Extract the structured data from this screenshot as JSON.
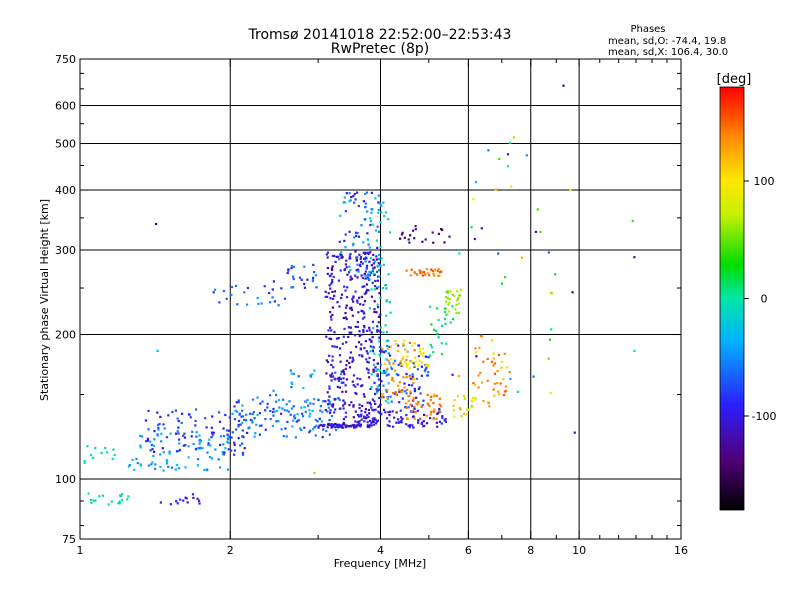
{
  "chart_data": {
    "type": "scatter",
    "title": "Tromsø 20141018 22:52:00–22:53:43",
    "subtitle": "RwPretec (8p)",
    "stats": {
      "heading": "Phases",
      "line1": "mean, sd,O: -74.4, 19.8",
      "line2": "mean, sd,X: 106.4, 30.0"
    },
    "xlabel": "Frequency [MHz]",
    "ylabel": "Stationary phase Virtual Height [km]",
    "x_scale": "log",
    "y_scale": "log",
    "xlim": [
      1,
      16
    ],
    "ylim": [
      75,
      750
    ],
    "x_ticks": [
      {
        "value": 1,
        "label": "1"
      },
      {
        "value": 2,
        "label": "2"
      },
      {
        "value": 4,
        "label": "4"
      },
      {
        "value": 6,
        "label": "6"
      },
      {
        "value": 8,
        "label": "8"
      },
      {
        "value": 10,
        "label": "10"
      },
      {
        "value": 16,
        "label": "16"
      }
    ],
    "y_ticks": [
      {
        "value": 75,
        "label": "75"
      },
      {
        "value": 100,
        "label": "100"
      },
      {
        "value": 200,
        "label": "200"
      },
      {
        "value": 300,
        "label": "300"
      },
      {
        "value": 400,
        "label": "400"
      },
      {
        "value": 500,
        "label": "500"
      },
      {
        "value": 600,
        "label": "600"
      },
      {
        "value": 750,
        "label": "750"
      }
    ],
    "x_gridlines": [
      2,
      4,
      6,
      8,
      10
    ],
    "y_gridlines": [
      100,
      200,
      300,
      400,
      500,
      600
    ],
    "grid": true,
    "colorbar": {
      "label": "[deg]",
      "range": [
        -180,
        180
      ],
      "ticks": [
        {
          "value": 100,
          "label": "100"
        },
        {
          "value": 0,
          "label": "0"
        },
        {
          "value": -100,
          "label": "-100"
        }
      ]
    },
    "clusters": [
      {
        "x": [
          1.0,
          1.25
        ],
        "y": [
          88,
          94
        ],
        "phase": [
          -20,
          10
        ],
        "n": 18
      },
      {
        "x": [
          1.45,
          1.75
        ],
        "y": [
          88,
          93
        ],
        "phase": [
          -110,
          -80
        ],
        "n": 14
      },
      {
        "x": [
          1.02,
          1.2
        ],
        "y": [
          105,
          118
        ],
        "phase": [
          -20,
          10
        ],
        "n": 12
      },
      {
        "x": [
          1.25,
          2.0
        ],
        "y": [
          104,
          128
        ],
        "phase": [
          -60,
          -20
        ],
        "n": 90
      },
      {
        "x": [
          1.35,
          2.2
        ],
        "y": [
          112,
          140
        ],
        "phase": [
          -110,
          -60
        ],
        "n": 90
      },
      {
        "x": [
          2.0,
          3.3
        ],
        "y": [
          122,
          148
        ],
        "phase": [
          -90,
          -30
        ],
        "n": 120
      },
      {
        "x": [
          2.4,
          3.4
        ],
        "y": [
          130,
          170
        ],
        "phase": [
          -70,
          -20
        ],
        "n": 40
      },
      {
        "x": [
          1.85,
          2.6
        ],
        "y": [
          230,
          260
        ],
        "phase": [
          -100,
          -40
        ],
        "n": 25
      },
      {
        "x": [
          2.6,
          3.0
        ],
        "y": [
          250,
          280
        ],
        "phase": [
          -100,
          -40
        ],
        "n": 25
      },
      {
        "x": [
          3.0,
          3.8
        ],
        "y": [
          128,
          130
        ],
        "phase": [
          -120,
          -90
        ],
        "n": 60
      },
      {
        "x": [
          3.1,
          4.0
        ],
        "y": [
          130,
          300
        ],
        "phase": [
          -130,
          -80
        ],
        "n": 380
      },
      {
        "x": [
          3.3,
          4.0
        ],
        "y": [
          260,
          400
        ],
        "phase": [
          -110,
          -20
        ],
        "n": 80
      },
      {
        "x": [
          3.8,
          4.2
        ],
        "y": [
          140,
          380
        ],
        "phase": [
          -40,
          10
        ],
        "n": 80
      },
      {
        "x": [
          3.6,
          5.5
        ],
        "y": [
          128,
          140
        ],
        "phase": [
          -120,
          -80
        ],
        "n": 90
      },
      {
        "x": [
          3.9,
          5.0
        ],
        "y": [
          140,
          190
        ],
        "phase": [
          -110,
          -50
        ],
        "n": 90
      },
      {
        "x": [
          4.0,
          4.7
        ],
        "y": [
          145,
          195
        ],
        "phase": [
          110,
          150
        ],
        "n": 50
      },
      {
        "x": [
          4.4,
          5.0
        ],
        "y": [
          170,
          195
        ],
        "phase": [
          90,
          110
        ],
        "n": 30
      },
      {
        "x": [
          4.5,
          5.3
        ],
        "y": [
          133,
          150
        ],
        "phase": [
          130,
          150
        ],
        "n": 40
      },
      {
        "x": [
          4.5,
          5.3
        ],
        "y": [
          265,
          275
        ],
        "phase": [
          130,
          160
        ],
        "n": 30
      },
      {
        "x": [
          4.3,
          5.5
        ],
        "y": [
          310,
          340
        ],
        "phase": [
          -150,
          -120
        ],
        "n": 20
      },
      {
        "x": [
          5.4,
          5.8
        ],
        "y": [
          220,
          250
        ],
        "phase": [
          50,
          70
        ],
        "n": 25
      },
      {
        "x": [
          5.0,
          5.6
        ],
        "y": [
          180,
          230
        ],
        "phase": [
          -10,
          40
        ],
        "n": 25
      },
      {
        "x": [
          5.6,
          6.3
        ],
        "y": [
          135,
          150
        ],
        "phase": [
          50,
          130
        ],
        "n": 20
      },
      {
        "x": [
          6.1,
          7.2
        ],
        "y": [
          140,
          200
        ],
        "phase": [
          100,
          160
        ],
        "n": 30
      },
      {
        "x": [
          6.4,
          7.3
        ],
        "y": [
          150,
          180
        ],
        "phase": [
          130,
          160
        ],
        "n": 15
      },
      {
        "x": [
          5.5,
          9.0
        ],
        "y": [
          150,
          550
        ],
        "phase": [
          -140,
          130
        ],
        "n": 35
      }
    ],
    "outliers": [
      {
        "x": 1.42,
        "y": 340,
        "phase": -140
      },
      {
        "x": 1.43,
        "y": 185,
        "phase": -20
      },
      {
        "x": 9.3,
        "y": 660,
        "phase": -140
      },
      {
        "x": 9.6,
        "y": 400,
        "phase": 100
      },
      {
        "x": 9.7,
        "y": 245,
        "phase": -140
      },
      {
        "x": 9.8,
        "y": 125,
        "phase": -110
      },
      {
        "x": 12.8,
        "y": 345,
        "phase": 40
      },
      {
        "x": 12.9,
        "y": 290,
        "phase": -130
      },
      {
        "x": 12.9,
        "y": 185,
        "phase": 0
      },
      {
        "x": 7.4,
        "y": 515,
        "phase": 60
      },
      {
        "x": 7.2,
        "y": 475,
        "phase": -100
      },
      {
        "x": 2.95,
        "y": 103,
        "phase": 60
      }
    ]
  }
}
